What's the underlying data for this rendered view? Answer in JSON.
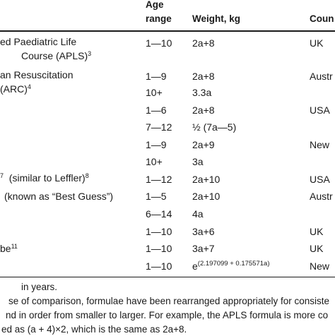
{
  "headers": {
    "age_line1": "Age",
    "age_line2": "range",
    "weight": "Weight, kg",
    "country": "Coun"
  },
  "rows": [
    {
      "method_line1": "ed Paediatric Life",
      "method_line2": "Course (APLS)",
      "method_sup": "3",
      "age": "1—10",
      "weight": "2a+8",
      "country": "UK"
    },
    {
      "method_line1": "an Resuscitation",
      "method_line2": "(ARC)",
      "method_sup": "4",
      "age": "1—9",
      "weight": "2a+8",
      "country": "Austr"
    },
    {
      "age": "10+",
      "weight": "3.3a",
      "country": ""
    },
    {
      "age": "1—6",
      "weight": "2a+8",
      "country": "USA"
    },
    {
      "age": "7—12",
      "weight": "½ (7a—5)",
      "country": ""
    },
    {
      "age": "1—9",
      "weight": "2a+9",
      "country": "New"
    },
    {
      "age": "10+",
      "weight": "3a",
      "country": ""
    },
    {
      "method_sup_first": "7",
      "method_line1": "(similar to Leffler)",
      "method_sup": "8",
      "age": "1—12",
      "weight": "2a+10",
      "country": "USA"
    },
    {
      "method_line1": "(known as “Best Guess”)",
      "age": "1—5",
      "weight": "2a+10",
      "country": "Austr"
    },
    {
      "age": "6—14",
      "weight": "4a",
      "country": ""
    },
    {
      "age": "1—10",
      "weight": "3a+6",
      "country": "UK"
    },
    {
      "method_line1": "be",
      "method_sup": "11",
      "age": "1—10",
      "weight": "3a+7",
      "country": "UK"
    },
    {
      "age": "1—10",
      "weight_base": "e",
      "weight_exp": "(2.197099 + 0.175571a)",
      "country": "New"
    }
  ],
  "footnotes": [
    "in years.",
    "se of comparison, formulae have been rearranged appropriately for consiste",
    "nd in order from smaller to larger. For example, the APLS formula is more co",
    "ed as (a + 4)×2, which is the same as 2a+8."
  ]
}
